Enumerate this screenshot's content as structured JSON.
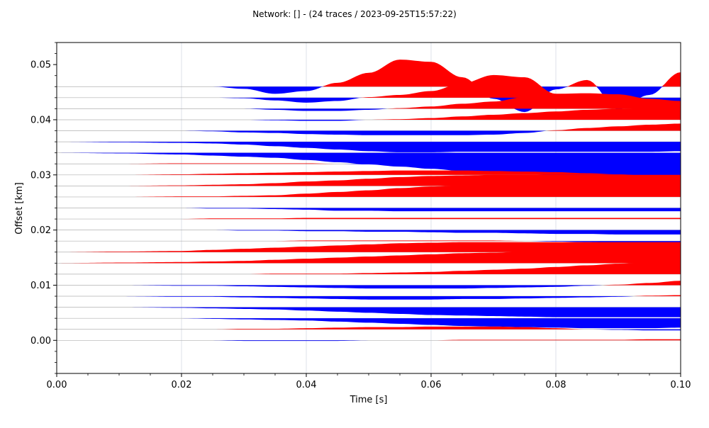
{
  "chart_data": {
    "type": "area",
    "title": "Network:  [] - (24 traces / 2023-09-25T15:57:22)",
    "xlabel": "Time [s]",
    "ylabel": "Offset [km]",
    "xlim": [
      0.0,
      0.1
    ],
    "ylim": [
      -0.006,
      0.054
    ],
    "x_ticks": [
      0.0,
      0.02,
      0.04,
      0.06,
      0.08,
      0.1
    ],
    "x_tick_labels": [
      "0.00",
      "0.02",
      "0.04",
      "0.06",
      "0.08",
      "0.10"
    ],
    "y_ticks": [
      0.0,
      0.01,
      0.02,
      0.03,
      0.04,
      0.05
    ],
    "y_tick_labels": [
      "0.00",
      "0.01",
      "0.02",
      "0.03",
      "0.04",
      "0.05"
    ],
    "grid": "vertical",
    "positive_color": "#ff0000",
    "negative_color": "#0000ff",
    "trace_line_color": "#b0b0b0",
    "grid_color": "#dde0e8",
    "time_samples": [
      0.0,
      0.01,
      0.02,
      0.025,
      0.03,
      0.035,
      0.04,
      0.045,
      0.05,
      0.055,
      0.06,
      0.065,
      0.07,
      0.075,
      0.08,
      0.085,
      0.09,
      0.095,
      0.1
    ],
    "traces": [
      {
        "offset": 0.046,
        "amplitudes": [
          0,
          0,
          0,
          0,
          -0.0004,
          -0.0013,
          -0.0008,
          0.0007,
          0.0025,
          0.0049,
          0.0045,
          0.0017,
          -0.0022,
          -0.0046,
          -0.0005,
          0.0012,
          -0.0041,
          -0.0015,
          0.0026
        ]
      },
      {
        "offset": 0.044,
        "amplitudes": [
          0,
          0,
          0,
          0,
          -0.0001,
          -0.0005,
          -0.0009,
          -0.0006,
          0.0001,
          0.0005,
          0.0012,
          0.0026,
          0.0041,
          0.0037,
          0.0007,
          0.0005,
          0.0006,
          -0.0012,
          -0.003
        ]
      },
      {
        "offset": 0.042,
        "amplitudes": [
          0,
          0,
          0,
          0,
          0,
          -0.0002,
          -0.0004,
          -0.0004,
          -0.0002,
          0.0001,
          0.0004,
          0.0009,
          0.0013,
          0.0021,
          0.0027,
          0.0028,
          0.0026,
          0.0018,
          0.0014
        ]
      },
      {
        "offset": 0.04,
        "amplitudes": [
          0,
          0,
          0,
          0,
          0,
          -0.0001,
          -0.0002,
          -0.0002,
          0,
          0.0001,
          0.0003,
          0.0006,
          0.0009,
          0.0012,
          0.0015,
          0.0018,
          0.002,
          0.0021,
          0.0022
        ]
      },
      {
        "offset": 0.038,
        "amplitudes": [
          0,
          0,
          0,
          -0.0001,
          -0.0003,
          -0.0004,
          -0.0006,
          -0.0007,
          -0.0008,
          -0.0008,
          -0.0008,
          -0.0008,
          -0.0007,
          -0.0004,
          0.0001,
          0.0005,
          0.0008,
          0.0011,
          0.0013
        ]
      },
      {
        "offset": 0.036,
        "amplitudes": [
          0,
          -0.0001,
          -0.0002,
          -0.0003,
          -0.0005,
          -0.0008,
          -0.0011,
          -0.0014,
          -0.0017,
          -0.0019,
          -0.0019,
          -0.0018,
          -0.0018,
          -0.0018,
          -0.0018,
          -0.0018,
          -0.0018,
          -0.0018,
          -0.0017
        ]
      },
      {
        "offset": 0.034,
        "amplitudes": [
          0,
          -0.0001,
          -0.0003,
          -0.0005,
          -0.0007,
          -0.0009,
          -0.0013,
          -0.0017,
          -0.0021,
          -0.0025,
          -0.0029,
          -0.0033,
          -0.0036,
          -0.0039,
          -0.0041,
          -0.0042,
          -0.0043,
          -0.0044,
          -0.0045
        ]
      },
      {
        "offset": 0.032,
        "amplitudes": [
          0,
          0,
          0.0001,
          0.0001,
          0.0001,
          0.0001,
          0.0001,
          0,
          -0.0001,
          -0.0002,
          -0.0003,
          -0.0005,
          -0.0006,
          -0.0008,
          -0.0009,
          -0.001,
          -0.0011,
          -0.0012,
          -0.0012
        ]
      },
      {
        "offset": 0.03,
        "amplitudes": [
          0,
          0,
          0.0001,
          0.0002,
          0.0003,
          0.0004,
          0.0005,
          0.0006,
          0.0007,
          0.0008,
          0.0008,
          0.0008,
          0.0007,
          0.0006,
          0.0005,
          0.0003,
          0.0001,
          -0.0001,
          -0.0003
        ]
      },
      {
        "offset": 0.028,
        "amplitudes": [
          0,
          0,
          0.0001,
          0.0002,
          0.0003,
          0.0005,
          0.0008,
          0.001,
          0.0013,
          0.0016,
          0.0018,
          0.0019,
          0.002,
          0.002,
          0.002,
          0.002,
          0.002,
          0.002,
          0.002
        ]
      },
      {
        "offset": 0.026,
        "amplitudes": [
          0,
          0,
          0.0001,
          0.0001,
          0.0002,
          0.0003,
          0.0006,
          0.0009,
          0.0012,
          0.0016,
          0.0019,
          0.0021,
          0.0024,
          0.0026,
          0.0028,
          0.0029,
          0.003,
          0.0031,
          0.0032
        ]
      },
      {
        "offset": 0.024,
        "amplitudes": [
          0,
          0,
          0,
          -0.0001,
          -0.0001,
          -0.0002,
          -0.0003,
          -0.0005,
          -0.0005,
          -0.0006,
          -0.0006,
          -0.0006,
          -0.0006,
          -0.0006,
          -0.0006,
          -0.0006,
          -0.0006,
          -0.0006,
          -0.0006
        ]
      },
      {
        "offset": 0.022,
        "amplitudes": [
          0,
          0,
          0,
          0.0001,
          0.0001,
          0.0001,
          0.0002,
          0.0002,
          0.0002,
          0.0002,
          0.0002,
          0.0002,
          0.0002,
          0.0002,
          0.0002,
          0.0002,
          0.0002,
          0.0002,
          0.0002
        ]
      },
      {
        "offset": 0.02,
        "amplitudes": [
          0,
          0,
          0,
          0,
          -0.0001,
          -0.0001,
          -0.0002,
          -0.0002,
          -0.0003,
          -0.0003,
          -0.0004,
          -0.0005,
          -0.0005,
          -0.0006,
          -0.0007,
          -0.0007,
          -0.0008,
          -0.0008,
          -0.0008
        ]
      },
      {
        "offset": 0.018,
        "amplitudes": [
          0,
          0,
          0,
          0,
          0,
          0,
          0.0001,
          0.0001,
          0.0001,
          0.0001,
          0.0001,
          0.0001,
          0.0001,
          0,
          -0.0001,
          -0.0002,
          -0.0003,
          -0.0004,
          -0.0005
        ]
      },
      {
        "offset": 0.016,
        "amplitudes": [
          0,
          0.0001,
          0.0002,
          0.0004,
          0.0006,
          0.0008,
          0.001,
          0.0012,
          0.0014,
          0.0016,
          0.0017,
          0.0018,
          0.0018,
          0.0018,
          0.0018,
          0.0018,
          0.0018,
          0.0018,
          0.0018
        ]
      },
      {
        "offset": 0.014,
        "amplitudes": [
          0,
          0.0001,
          0.0002,
          0.0003,
          0.0004,
          0.0006,
          0.0008,
          0.001,
          0.0012,
          0.0014,
          0.0016,
          0.0018,
          0.0019,
          0.0021,
          0.0022,
          0.0023,
          0.0024,
          0.0024,
          0.0024
        ]
      },
      {
        "offset": 0.012,
        "amplitudes": [
          0,
          0,
          0,
          0,
          0,
          0.0001,
          0.0001,
          0.0001,
          0.0002,
          0.0003,
          0.0004,
          0.0006,
          0.0008,
          0.001,
          0.0013,
          0.0016,
          0.0019,
          0.0022,
          0.0026
        ]
      },
      {
        "offset": 0.01,
        "amplitudes": [
          0,
          0,
          -0.0001,
          -0.0001,
          -0.0002,
          -0.0003,
          -0.0004,
          -0.0005,
          -0.0006,
          -0.0006,
          -0.0006,
          -0.0006,
          -0.0005,
          -0.0004,
          -0.0003,
          -0.0001,
          0.0001,
          0.0004,
          0.0008
        ]
      },
      {
        "offset": 0.008,
        "amplitudes": [
          0,
          0,
          -0.0001,
          -0.0001,
          -0.0002,
          -0.0003,
          -0.0004,
          -0.0005,
          -0.0006,
          -0.0006,
          -0.0006,
          -0.0005,
          -0.0005,
          -0.0004,
          -0.0003,
          -0.0002,
          -0.0001,
          0.0001,
          0.0002
        ]
      },
      {
        "offset": 0.006,
        "amplitudes": [
          0,
          0,
          -0.0001,
          -0.0002,
          -0.0003,
          -0.0004,
          -0.0006,
          -0.0008,
          -0.001,
          -0.0012,
          -0.0014,
          -0.0015,
          -0.0016,
          -0.0017,
          -0.0018,
          -0.0018,
          -0.0018,
          -0.0018,
          -0.0018
        ]
      },
      {
        "offset": 0.004,
        "amplitudes": [
          0,
          0,
          0,
          -0.0001,
          -0.0002,
          -0.0003,
          -0.0004,
          -0.0006,
          -0.0008,
          -0.001,
          -0.0012,
          -0.0014,
          -0.0015,
          -0.0016,
          -0.0017,
          -0.0018,
          -0.0018,
          -0.0018,
          -0.0017
        ]
      },
      {
        "offset": 0.002,
        "amplitudes": [
          0,
          0,
          0,
          0,
          0.0001,
          0.0001,
          0.0002,
          0.0003,
          0.0004,
          0.0004,
          0.0005,
          0.0005,
          0.0005,
          0.0004,
          0.0002,
          0,
          -0.0001,
          -0.0002,
          -0.0002
        ]
      },
      {
        "offset": 0.0,
        "amplitudes": [
          0,
          0,
          0,
          0,
          -0.0001,
          -0.0001,
          -0.0001,
          -0.0001,
          0,
          0,
          0,
          0.0001,
          0.0001,
          0.0001,
          0.0001,
          0.0001,
          0.0001,
          0.0002,
          0.0002
        ]
      }
    ]
  }
}
